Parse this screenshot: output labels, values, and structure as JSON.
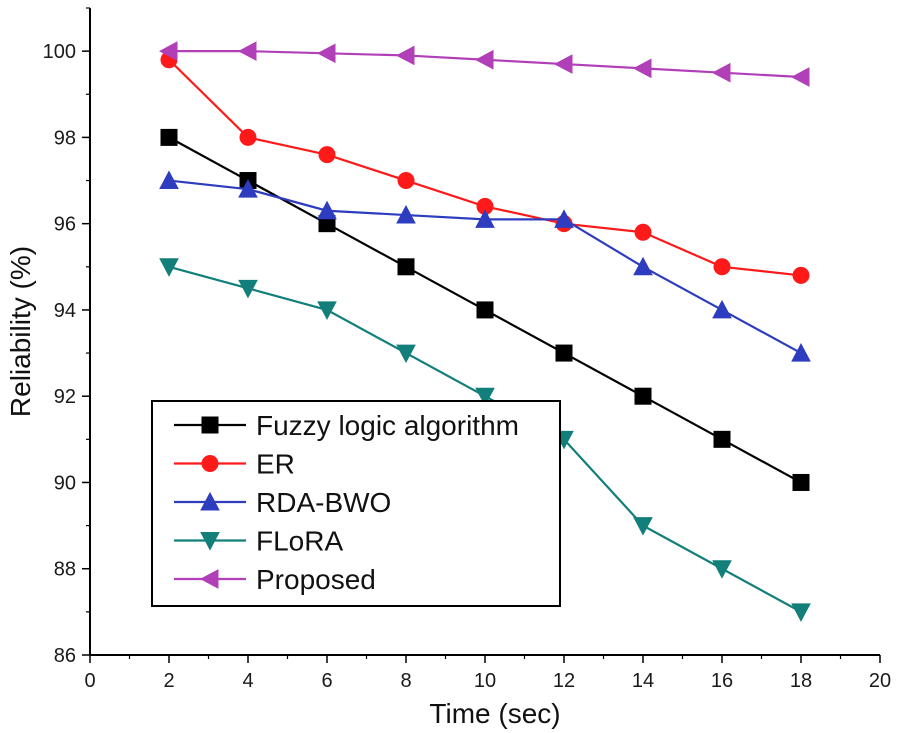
{
  "chart_data": {
    "type": "line",
    "title": "",
    "xlabel": "Time (sec)",
    "ylabel": "Reliability (%)",
    "xlim": [
      0,
      20
    ],
    "ylim": [
      86,
      101
    ],
    "xticks": [
      0,
      2,
      4,
      6,
      8,
      10,
      12,
      14,
      16,
      18,
      20
    ],
    "yticks": [
      86,
      88,
      90,
      92,
      94,
      96,
      98,
      100
    ],
    "grid": false,
    "legend_position": "bottom-left",
    "x": [
      2,
      4,
      6,
      8,
      10,
      12,
      14,
      16,
      18
    ],
    "series": [
      {
        "name": "Fuzzy logic algorithm",
        "color": "#000000",
        "marker": "square",
        "values": [
          98,
          97,
          96,
          95,
          94,
          93,
          92,
          91,
          90
        ]
      },
      {
        "name": "ER",
        "color": "#ff1a1a",
        "marker": "circle",
        "values": [
          99.8,
          98,
          97.6,
          97,
          96.4,
          96,
          95.8,
          95,
          94.8
        ]
      },
      {
        "name": "RDA-BWO",
        "color": "#2e3cbf",
        "marker": "triangle-up",
        "values": [
          97,
          96.8,
          96.3,
          96.2,
          96.1,
          96.1,
          95,
          94,
          93
        ]
      },
      {
        "name": "FLoRA",
        "color": "#127f7a",
        "marker": "triangle-down",
        "values": [
          95,
          94.5,
          94,
          93,
          92,
          91,
          89,
          88,
          87
        ]
      },
      {
        "name": "Proposed",
        "color": "#b13fb8",
        "marker": "triangle-left",
        "values": [
          100,
          100,
          99.95,
          99.9,
          99.8,
          99.7,
          99.6,
          99.5,
          99.4
        ]
      }
    ]
  }
}
